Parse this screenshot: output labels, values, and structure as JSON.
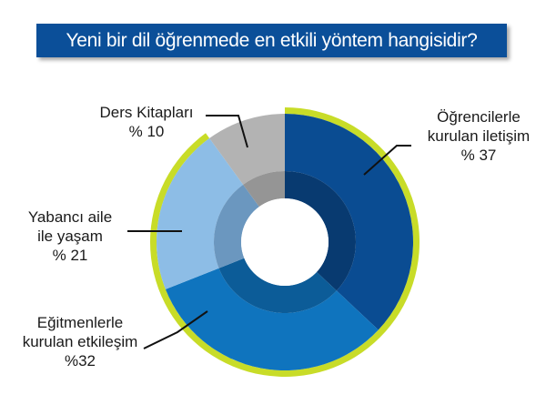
{
  "chart_data": {
    "type": "pie",
    "variant": "donut",
    "title": "Yeni bir dil öğrenmede en etkili yöntem hangisidir?",
    "slices": [
      {
        "label_lines": [
          "Öğrencilerle",
          "kurulan iletişim",
          "% 37"
        ],
        "value": 37,
        "color": "#0a4c92",
        "inner_color": "#083a70"
      },
      {
        "label_lines": [
          "Eğitmenlerle",
          "kurulan etkileşim",
          "%32"
        ],
        "value": 32,
        "color": "#0f74be",
        "inner_color": "#0c5c98"
      },
      {
        "label_lines": [
          "Yabancı aile",
          "ile yaşam",
          "% 21"
        ],
        "value": 21,
        "color": "#8dbde6",
        "inner_color": "#6b97bf"
      },
      {
        "label_lines": [
          "Ders Kitapları",
          "% 10"
        ],
        "value": 10,
        "color": "#b3b3b3",
        "inner_color": "#959595"
      }
    ],
    "highlight_ring_color": "#c8dc28"
  }
}
